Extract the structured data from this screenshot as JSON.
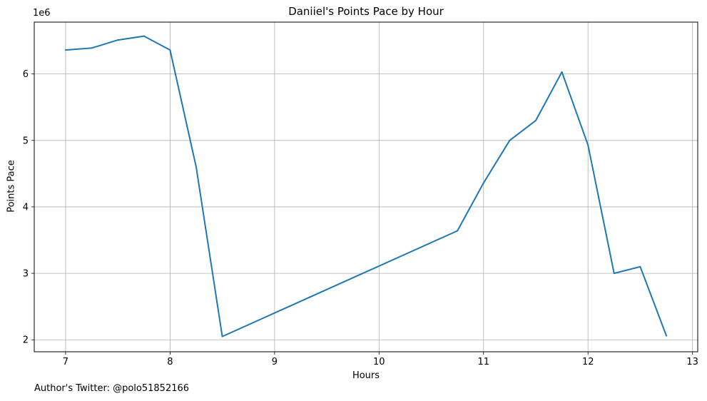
{
  "chart_data": {
    "type": "line",
    "title": "Daniiel's Points Pace by Hour",
    "xlabel": "Hours",
    "ylabel": "Points Pace",
    "y_offset_label": "1e6",
    "xlim": [
      6.7,
      13.05
    ],
    "ylim": [
      1.82,
      6.78
    ],
    "x_ticks": [
      7,
      8,
      9,
      10,
      11,
      12,
      13
    ],
    "y_ticks": [
      2,
      3,
      4,
      5,
      6
    ],
    "grid": true,
    "line_color": "#1f77b4",
    "series": [
      {
        "x": [
          7,
          7.25,
          7.5,
          7.75,
          8,
          8.25,
          8.5,
          10.75,
          11,
          11.25,
          11.5,
          11.75,
          12,
          12.25,
          12.5,
          12.75
        ],
        "values": [
          6.36,
          6.39,
          6.51,
          6.57,
          6.36,
          4.6,
          2.05,
          3.64,
          4.36,
          5.0,
          5.3,
          6.03,
          4.93,
          3.0,
          3.1,
          2.06
        ]
      }
    ]
  },
  "footer_text": "Author's Twitter: @polo51852166"
}
